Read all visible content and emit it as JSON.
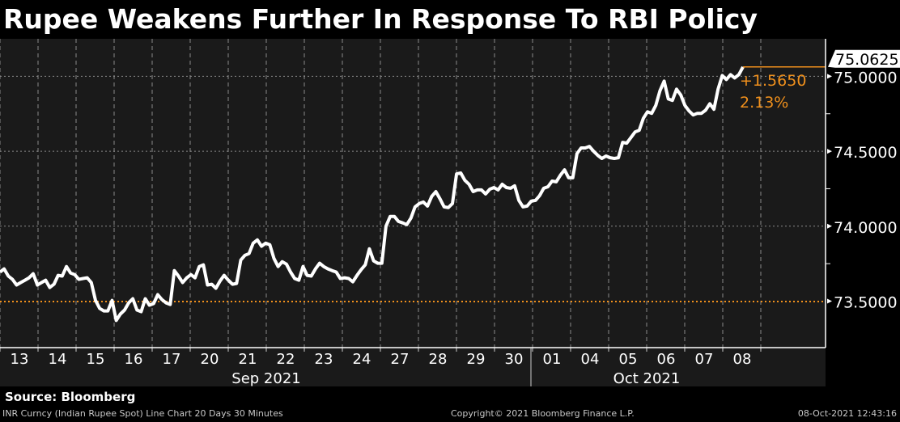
{
  "title": "Rupee Weakens Further In Response To RBI Policy",
  "source": "Source: Bloomberg",
  "footer": {
    "description": "INR Curncy (Indian Rupee Spot) Line Chart 20 Days 30 Minutes",
    "copyright": "Copyright© 2021 Bloomberg Finance L.P.",
    "timestamp": "08-Oct-2021 12:43:16"
  },
  "colors": {
    "background": "#1a1a1a",
    "line": "#ffffff",
    "accent": "#f0901c",
    "grid": "#8a8a8a"
  },
  "chart_data": {
    "type": "line",
    "title": "Rupee Weakens Further In Response To RBI Policy",
    "xlabel": "",
    "ylabel": "",
    "grid": true,
    "ylim": [
      73.19,
      75.25
    ],
    "y_ticks": [
      "73.5000",
      "74.0000",
      "74.5000",
      "75.0000"
    ],
    "y_tick_values": [
      73.5,
      74.0,
      74.5,
      75.0
    ],
    "x_tick_labels": [
      "13",
      "14",
      "15",
      "16",
      "17",
      "20",
      "21",
      "22",
      "23",
      "24",
      "27",
      "28",
      "29",
      "30",
      "01",
      "04",
      "05",
      "06",
      "07",
      "08"
    ],
    "month_labels": [
      {
        "label": "Sep 2021",
        "first": 0,
        "last": 13
      },
      {
        "label": "Oct 2021",
        "first": 14,
        "last": 19
      }
    ],
    "last_value": "75.0625",
    "change": "+1.5650",
    "change_pct": "2.13%",
    "reference_value": 73.4975,
    "values": [
      73.694,
      73.715,
      73.667,
      73.645,
      73.608,
      73.624,
      73.64,
      73.656,
      73.683,
      73.608,
      73.624,
      73.64,
      73.591,
      73.613,
      73.672,
      73.667,
      73.731,
      73.688,
      73.677,
      73.645,
      73.651,
      73.656,
      73.624,
      73.505,
      73.452,
      73.435,
      73.435,
      73.505,
      73.371,
      73.414,
      73.441,
      73.489,
      73.516,
      73.441,
      73.43,
      73.516,
      73.473,
      73.484,
      73.543,
      73.511,
      73.489,
      73.478,
      73.704,
      73.667,
      73.624,
      73.656,
      73.677,
      73.656,
      73.731,
      73.742,
      73.608,
      73.613,
      73.586,
      73.634,
      73.672,
      73.64,
      73.613,
      73.618,
      73.774,
      73.806,
      73.817,
      73.887,
      73.909,
      73.866,
      73.887,
      73.876,
      73.785,
      73.731,
      73.763,
      73.747,
      73.694,
      73.651,
      73.64,
      73.731,
      73.672,
      73.667,
      73.715,
      73.753,
      73.731,
      73.715,
      73.704,
      73.694,
      73.651,
      73.656,
      73.651,
      73.629,
      73.672,
      73.71,
      73.742,
      73.849,
      73.769,
      73.753,
      73.753,
      74.0,
      74.065,
      74.065,
      74.032,
      74.022,
      74.011,
      74.054,
      74.129,
      74.151,
      74.161,
      74.134,
      74.199,
      74.231,
      74.183,
      74.129,
      74.124,
      74.151,
      74.349,
      74.355,
      74.306,
      74.28,
      74.231,
      74.242,
      74.242,
      74.215,
      74.247,
      74.258,
      74.242,
      74.28,
      74.258,
      74.253,
      74.269,
      74.172,
      74.129,
      74.134,
      74.167,
      74.172,
      74.204,
      74.253,
      74.263,
      74.301,
      74.296,
      74.339,
      74.376,
      74.323,
      74.323,
      74.484,
      74.522,
      74.522,
      74.532,
      74.5,
      74.473,
      74.452,
      74.468,
      74.457,
      74.452,
      74.457,
      74.559,
      74.554,
      74.591,
      74.629,
      74.64,
      74.72,
      74.763,
      74.753,
      74.806,
      74.903,
      74.968,
      74.849,
      74.839,
      74.914,
      74.876,
      74.806,
      74.769,
      74.742,
      74.753,
      74.753,
      74.774,
      74.817,
      74.78,
      74.914,
      75.005,
      74.978,
      75.011,
      74.989,
      75.011,
      75.0625
    ]
  }
}
